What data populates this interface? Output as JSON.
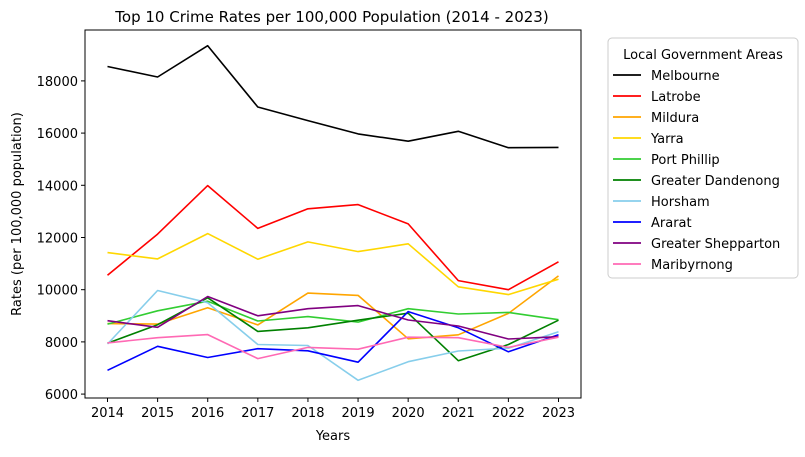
{
  "chart_data": {
    "type": "line",
    "title": "Top 10 Crime Rates per 100,000 Population (2014 - 2023)",
    "xlabel": "Years",
    "ylabel": "Rates (per 100,000 population)",
    "x": [
      2014,
      2015,
      2016,
      2017,
      2018,
      2019,
      2020,
      2021,
      2022,
      2023
    ],
    "x_tick_labels": [
      "2014",
      "2015",
      "2016",
      "2017",
      "2018",
      "2019",
      "2020",
      "2021",
      "2022",
      "2023"
    ],
    "ylim": [
      5850,
      19950
    ],
    "y_ticks": [
      6000,
      8000,
      10000,
      12000,
      14000,
      16000,
      18000
    ],
    "y_tick_labels": [
      "6000",
      "8000",
      "10000",
      "12000",
      "14000",
      "16000",
      "18000"
    ],
    "grid": false,
    "legend": {
      "title": "Local Government Areas",
      "placement": "outside-right-top"
    },
    "series": [
      {
        "name": "Melbourne",
        "color": "#000000",
        "values": [
          18550,
          18150,
          19350,
          17000,
          16480,
          15970,
          15690,
          16070,
          15440,
          15450
        ]
      },
      {
        "name": "Latrobe",
        "color": "#ff0000",
        "values": [
          10550,
          12130,
          13990,
          12350,
          13100,
          13260,
          12520,
          10350,
          10000,
          11070
        ]
      },
      {
        "name": "Mildura",
        "color": "#ffa500",
        "values": [
          8700,
          8680,
          9310,
          8650,
          9870,
          9780,
          8120,
          8270,
          9090,
          10530
        ]
      },
      {
        "name": "Yarra",
        "color": "#ffd700",
        "values": [
          11420,
          11180,
          12150,
          11170,
          11830,
          11460,
          11760,
          10110,
          9810,
          10400
        ]
      },
      {
        "name": "Port Phillip",
        "color": "#32cd32",
        "values": [
          8680,
          9190,
          9560,
          8800,
          8970,
          8760,
          9270,
          9070,
          9130,
          8850
        ]
      },
      {
        "name": "Greater Dandenong",
        "color": "#008000",
        "values": [
          7950,
          8660,
          9690,
          8400,
          8540,
          8830,
          9100,
          7280,
          7900,
          8830
        ]
      },
      {
        "name": "Horsham",
        "color": "#87ceeb",
        "values": [
          7920,
          9970,
          9500,
          7900,
          7860,
          6530,
          7240,
          7650,
          7760,
          8390
        ]
      },
      {
        "name": "Ararat",
        "color": "#0000ff",
        "values": [
          6910,
          7830,
          7400,
          7740,
          7660,
          7220,
          9160,
          8540,
          7620,
          8270
        ]
      },
      {
        "name": "Greater Shepparton",
        "color": "#800080",
        "values": [
          8810,
          8560,
          9740,
          9000,
          9270,
          9390,
          8840,
          8610,
          8110,
          8200
        ]
      },
      {
        "name": "Maribyrnong",
        "color": "#ff69b4",
        "values": [
          7960,
          8160,
          8280,
          7360,
          7790,
          7720,
          8180,
          8160,
          7790,
          8180
        ]
      }
    ]
  }
}
